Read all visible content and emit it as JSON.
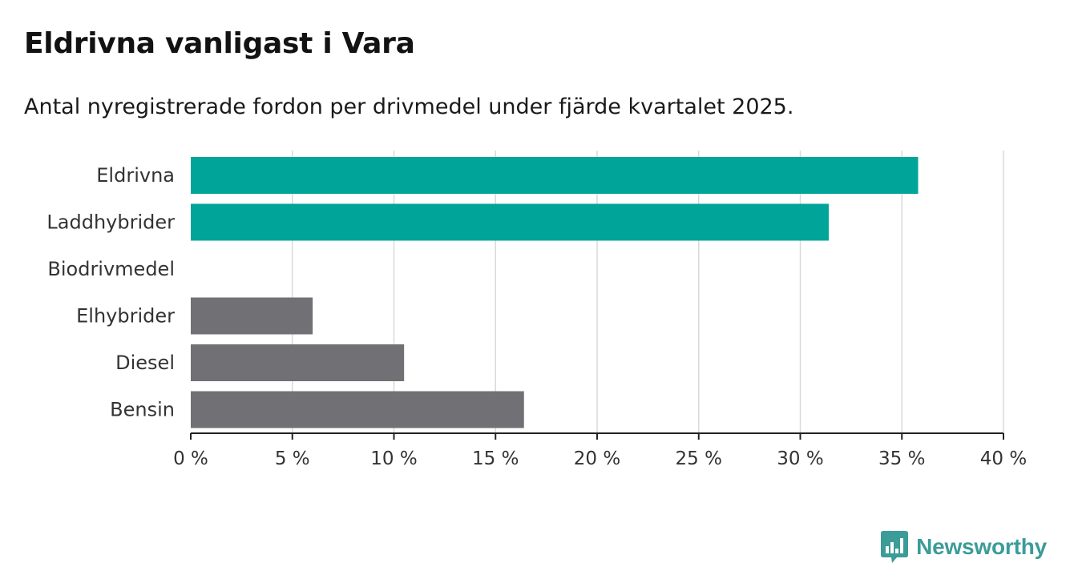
{
  "header": {
    "title": "Eldrivna vanligast i Vara",
    "subtitle": "Antal nyregistrerade fordon per drivmedel under fjärde kvartalet 2025."
  },
  "brand": {
    "name": "Newsworthy",
    "icon": "bar-chart-speech-bubble-icon",
    "color": "#3b9c98"
  },
  "colors": {
    "highlight": "#00a499",
    "neutral": "#707075",
    "grid": "#d9d9d9",
    "axis": "#222222"
  },
  "chart_data": {
    "type": "bar",
    "orientation": "horizontal",
    "title": "Eldrivna vanligast i Vara",
    "subtitle": "Antal nyregistrerade fordon per drivmedel under fjärde kvartalet 2025.",
    "categories": [
      "Eldrivna",
      "Laddhybrider",
      "Biodrivmedel",
      "Elhybrider",
      "Diesel",
      "Bensin"
    ],
    "values": [
      35.8,
      31.4,
      0,
      6.0,
      10.5,
      16.4
    ],
    "highlighted": [
      true,
      true,
      false,
      false,
      false,
      false
    ],
    "xlim": [
      0,
      40
    ],
    "xticks": [
      0,
      5,
      10,
      15,
      20,
      25,
      30,
      35,
      40
    ],
    "tick_labels": [
      "0 %",
      "5 %",
      "10 %",
      "15 %",
      "20 %",
      "25 %",
      "30 %",
      "35 %",
      "40 %"
    ],
    "xlabel": "",
    "ylabel": "",
    "grid": true,
    "legend": false
  }
}
